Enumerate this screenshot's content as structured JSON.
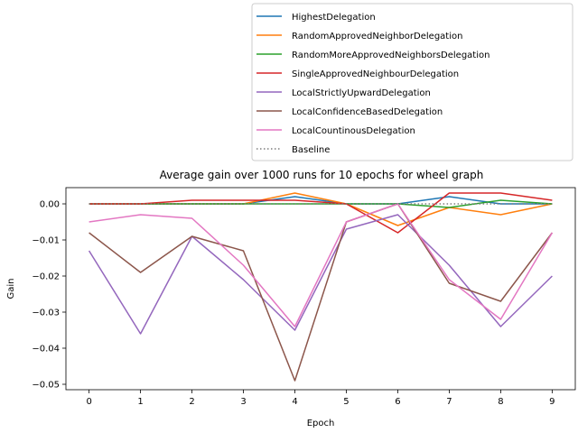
{
  "chart_data": {
    "type": "line",
    "title": "Average gain over 1000 runs for 10 epochs for wheel graph",
    "xlabel": "Epoch",
    "ylabel": "Gain",
    "x": [
      0,
      1,
      2,
      3,
      4,
      5,
      6,
      7,
      8,
      9
    ],
    "xlim": [
      -0.45,
      9.45
    ],
    "ylim": [
      -0.0515,
      0.0045
    ],
    "yticks": [
      0.0,
      -0.01,
      -0.02,
      -0.03,
      -0.04,
      -0.05
    ],
    "ytick_labels": [
      "0.00",
      "−0.01",
      "−0.02",
      "−0.03",
      "−0.04",
      "−0.05"
    ],
    "grid": false,
    "legend_position": "upper right",
    "series": [
      {
        "name": "HighestDelegation",
        "color": "#1f77b4",
        "style": "solid",
        "values": [
          0.0,
          0.0,
          0.0,
          0.0,
          0.002,
          0.0,
          0.0,
          0.002,
          0.0,
          0.0
        ]
      },
      {
        "name": "RandomApprovedNeighborDelegation",
        "color": "#ff7f0e",
        "style": "solid",
        "values": [
          0.0,
          0.0,
          0.0,
          0.0,
          0.003,
          0.0,
          -0.006,
          -0.001,
          -0.003,
          0.0
        ]
      },
      {
        "name": "RandomMoreApprovedNeighborsDelegation",
        "color": "#2ca02c",
        "style": "solid",
        "values": [
          0.0,
          0.0,
          0.0,
          0.0,
          0.0,
          0.0,
          0.0,
          -0.001,
          0.001,
          0.0
        ]
      },
      {
        "name": "SingleApprovedNeighbourDelegation",
        "color": "#d62728",
        "style": "solid",
        "values": [
          0.0,
          0.0,
          0.001,
          0.001,
          0.001,
          0.0,
          -0.008,
          0.003,
          0.003,
          0.001
        ]
      },
      {
        "name": "LocalStrictlyUpwardDelegation",
        "color": "#9467bd",
        "style": "solid",
        "values": [
          -0.013,
          -0.036,
          -0.009,
          -0.021,
          -0.035,
          -0.007,
          -0.003,
          -0.017,
          -0.034,
          -0.02
        ]
      },
      {
        "name": "LocalConfidenceBasedDelegation",
        "color": "#8c564b",
        "style": "solid",
        "values": [
          -0.008,
          -0.019,
          -0.009,
          -0.013,
          -0.049,
          -0.005,
          0.0,
          -0.022,
          -0.027,
          -0.008
        ]
      },
      {
        "name": "LocalCountinousDelegation",
        "color": "#e377c2",
        "style": "solid",
        "values": [
          -0.005,
          -0.003,
          -0.004,
          -0.017,
          -0.034,
          -0.005,
          0.0,
          -0.021,
          -0.032,
          -0.008
        ]
      },
      {
        "name": "Baseline",
        "color": "#7f7f7f",
        "style": "dotted",
        "values": [
          0,
          0,
          0,
          0,
          0,
          0,
          0,
          0,
          0,
          0
        ]
      }
    ]
  }
}
